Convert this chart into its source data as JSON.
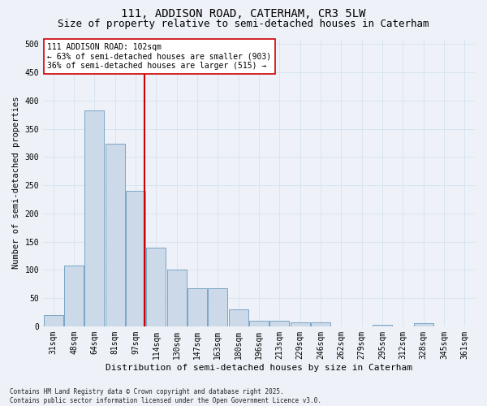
{
  "title1": "111, ADDISON ROAD, CATERHAM, CR3 5LW",
  "title2": "Size of property relative to semi-detached houses in Caterham",
  "xlabel": "Distribution of semi-detached houses by size in Caterham",
  "ylabel": "Number of semi-detached properties",
  "categories": [
    "31sqm",
    "48sqm",
    "64sqm",
    "81sqm",
    "97sqm",
    "114sqm",
    "130sqm",
    "147sqm",
    "163sqm",
    "180sqm",
    "196sqm",
    "213sqm",
    "229sqm",
    "246sqm",
    "262sqm",
    "279sqm",
    "295sqm",
    "312sqm",
    "328sqm",
    "345sqm",
    "361sqm"
  ],
  "values": [
    20,
    108,
    382,
    323,
    240,
    140,
    100,
    68,
    68,
    30,
    10,
    10,
    7,
    7,
    0,
    0,
    2,
    0,
    5,
    0,
    0
  ],
  "bar_color": "#ccd9e8",
  "bar_edge_color": "#6a9bbf",
  "vline_position": 4.45,
  "vline_color": "#cc0000",
  "annotation_text": "111 ADDISON ROAD: 102sqm\n← 63% of semi-detached houses are smaller (903)\n36% of semi-detached houses are larger (515) →",
  "annotation_box_color": "#ffffff",
  "annotation_box_edge": "#cc0000",
  "footer": "Contains HM Land Registry data © Crown copyright and database right 2025.\nContains public sector information licensed under the Open Government Licence v3.0.",
  "ylim": [
    0,
    510
  ],
  "yticks": [
    0,
    50,
    100,
    150,
    200,
    250,
    300,
    350,
    400,
    450,
    500
  ],
  "background_color": "#eef2f8",
  "grid_color": "#d8e4f0",
  "title1_fontsize": 10,
  "title2_fontsize": 9,
  "xlabel_fontsize": 8,
  "ylabel_fontsize": 7.5,
  "tick_fontsize": 7,
  "footer_fontsize": 5.5
}
